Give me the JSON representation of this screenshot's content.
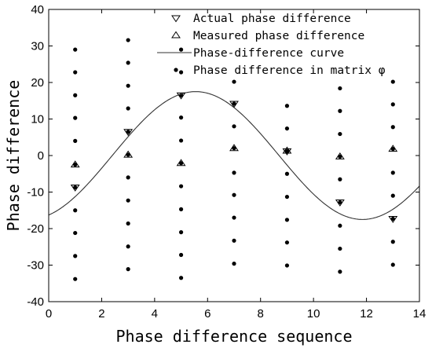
{
  "chart_data": {
    "type": "scatter",
    "title": "",
    "xlabel": "Phase difference sequence",
    "ylabel": "Phase difference",
    "xlim": [
      0,
      14
    ],
    "ylim": [
      -40,
      40
    ],
    "xticks": [
      0,
      2,
      4,
      6,
      8,
      10,
      12,
      14
    ],
    "yticks": [
      -40,
      -30,
      -20,
      -10,
      0,
      10,
      20,
      30,
      40
    ],
    "xtick_labels": [
      "0",
      "2",
      "4",
      "6",
      "8",
      "10",
      "12",
      "14"
    ],
    "ytick_labels": [
      "-40",
      "-30",
      "-20",
      "-10",
      "0",
      "10",
      "20",
      "30",
      "40"
    ],
    "grid": false,
    "legend_position": "top-right",
    "series": [
      {
        "name": "Actual phase difference",
        "marker": "triangle-down",
        "x": [
          1,
          3,
          5,
          7,
          9,
          11,
          13
        ],
        "y": [
          -8.7,
          6.5,
          16.5,
          14.2,
          1.2,
          -12.8,
          -17.3
        ]
      },
      {
        "name": "Measured phase difference",
        "marker": "triangle-up",
        "x": [
          1,
          3,
          5,
          7,
          9,
          11,
          13
        ],
        "y": [
          -2.5,
          0.2,
          -2.1,
          2.0,
          1.3,
          -0.3,
          1.8
        ]
      },
      {
        "name": "Phase-difference curve",
        "marker": "line",
        "amplitude": 17.5,
        "center_x": 5.55,
        "period": 12.6
      },
      {
        "name": "Phase difference in matrix φ",
        "marker": "dot",
        "columns": [
          {
            "x": 1,
            "y": [
              29.0,
              22.8,
              16.5,
              10.3,
              4.0,
              -2.5,
              -8.7,
              -15.0,
              -21.2,
              -27.5,
              -33.8
            ]
          },
          {
            "x": 3,
            "y": [
              31.6,
              25.4,
              19.1,
              12.9,
              6.5,
              0.2,
              -6.0,
              -12.3,
              -18.6,
              -24.9,
              -31.1
            ]
          },
          {
            "x": 5,
            "y": [
              29.0,
              22.8,
              16.5,
              10.4,
              4.1,
              -2.1,
              -8.4,
              -14.7,
              -21.0,
              -27.2,
              -33.5
            ]
          },
          {
            "x": 7,
            "y": [
              20.2,
              14.2,
              8.0,
              2.0,
              -4.7,
              -10.8,
              -17.0,
              -23.3,
              -29.6
            ]
          },
          {
            "x": 9,
            "y": [
              13.6,
              7.4,
              1.2,
              -5.0,
              -11.3,
              -17.6,
              -23.8,
              -30.1
            ]
          },
          {
            "x": 11,
            "y": [
              18.4,
              12.2,
              5.9,
              -0.3,
              -6.5,
              -12.8,
              -19.2,
              -25.5,
              -31.8
            ]
          },
          {
            "x": 13,
            "y": [
              20.2,
              14.0,
              7.8,
              1.8,
              -4.7,
              -11.0,
              -17.3,
              -23.6,
              -29.9
            ]
          }
        ]
      }
    ]
  }
}
